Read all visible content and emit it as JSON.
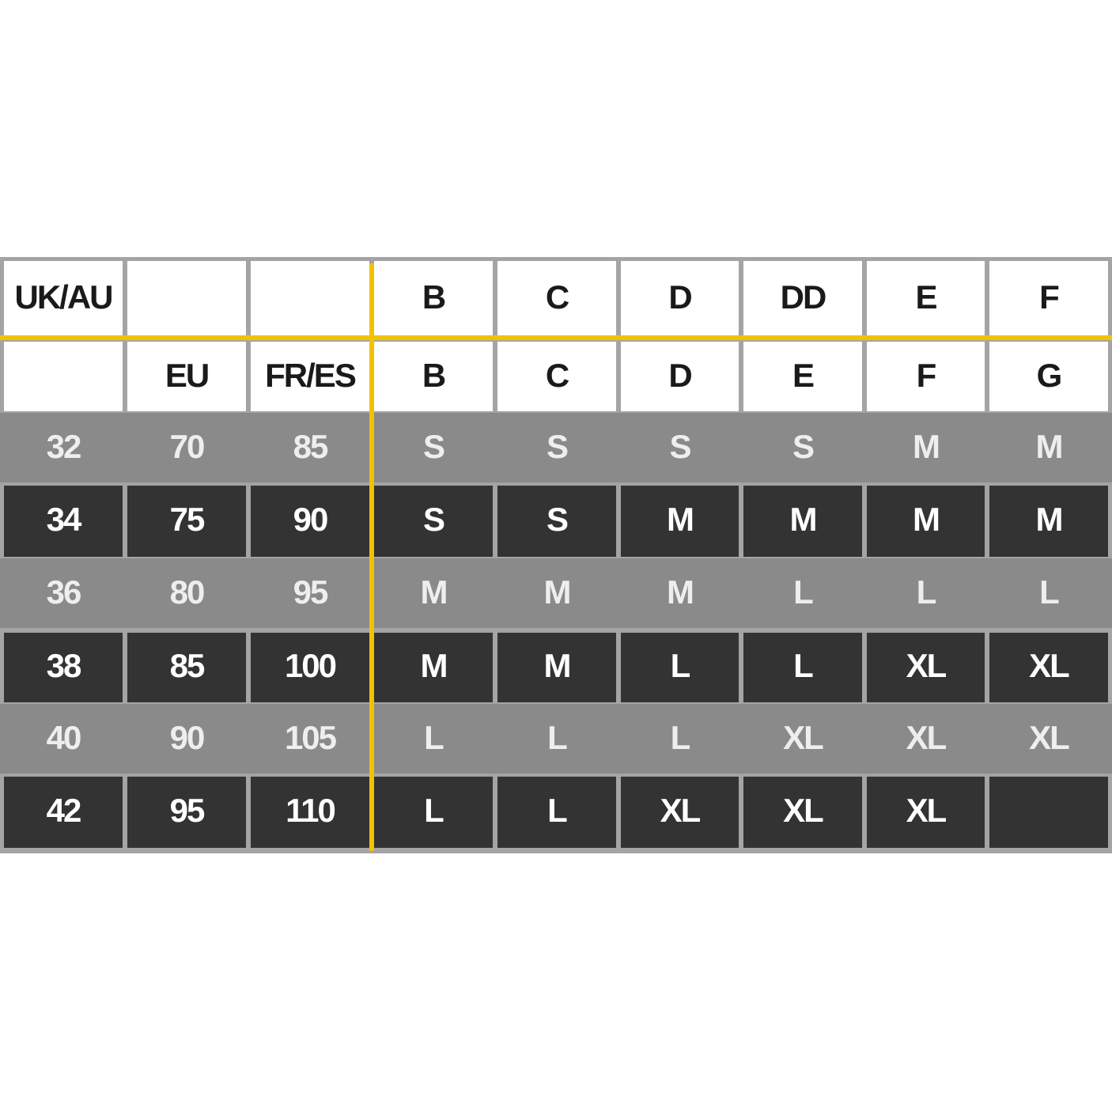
{
  "table": {
    "header_rows": [
      [
        "UK/AU",
        null,
        null,
        "B",
        "C",
        "D",
        "DD",
        "E",
        "F"
      ],
      [
        null,
        "EU",
        "FR/ES",
        "B",
        "C",
        "D",
        "E",
        "F",
        "G"
      ]
    ],
    "rows": [
      [
        "32",
        "70",
        "85",
        "S",
        "S",
        "S",
        "S",
        "M",
        "M"
      ],
      [
        "34",
        "75",
        "90",
        "S",
        "S",
        "M",
        "M",
        "M",
        "M"
      ],
      [
        "36",
        "80",
        "95",
        "M",
        "M",
        "M",
        "L",
        "L",
        "L"
      ],
      [
        "38",
        "85",
        "100",
        "M",
        "M",
        "L",
        "L",
        "XL",
        "XL"
      ],
      [
        "40",
        "90",
        "105",
        "L",
        "L",
        "L",
        "XL",
        "XL",
        "XL"
      ],
      [
        "42",
        "95",
        "110",
        "L",
        "L",
        "XL",
        "XL",
        "XL",
        null
      ]
    ]
  }
}
